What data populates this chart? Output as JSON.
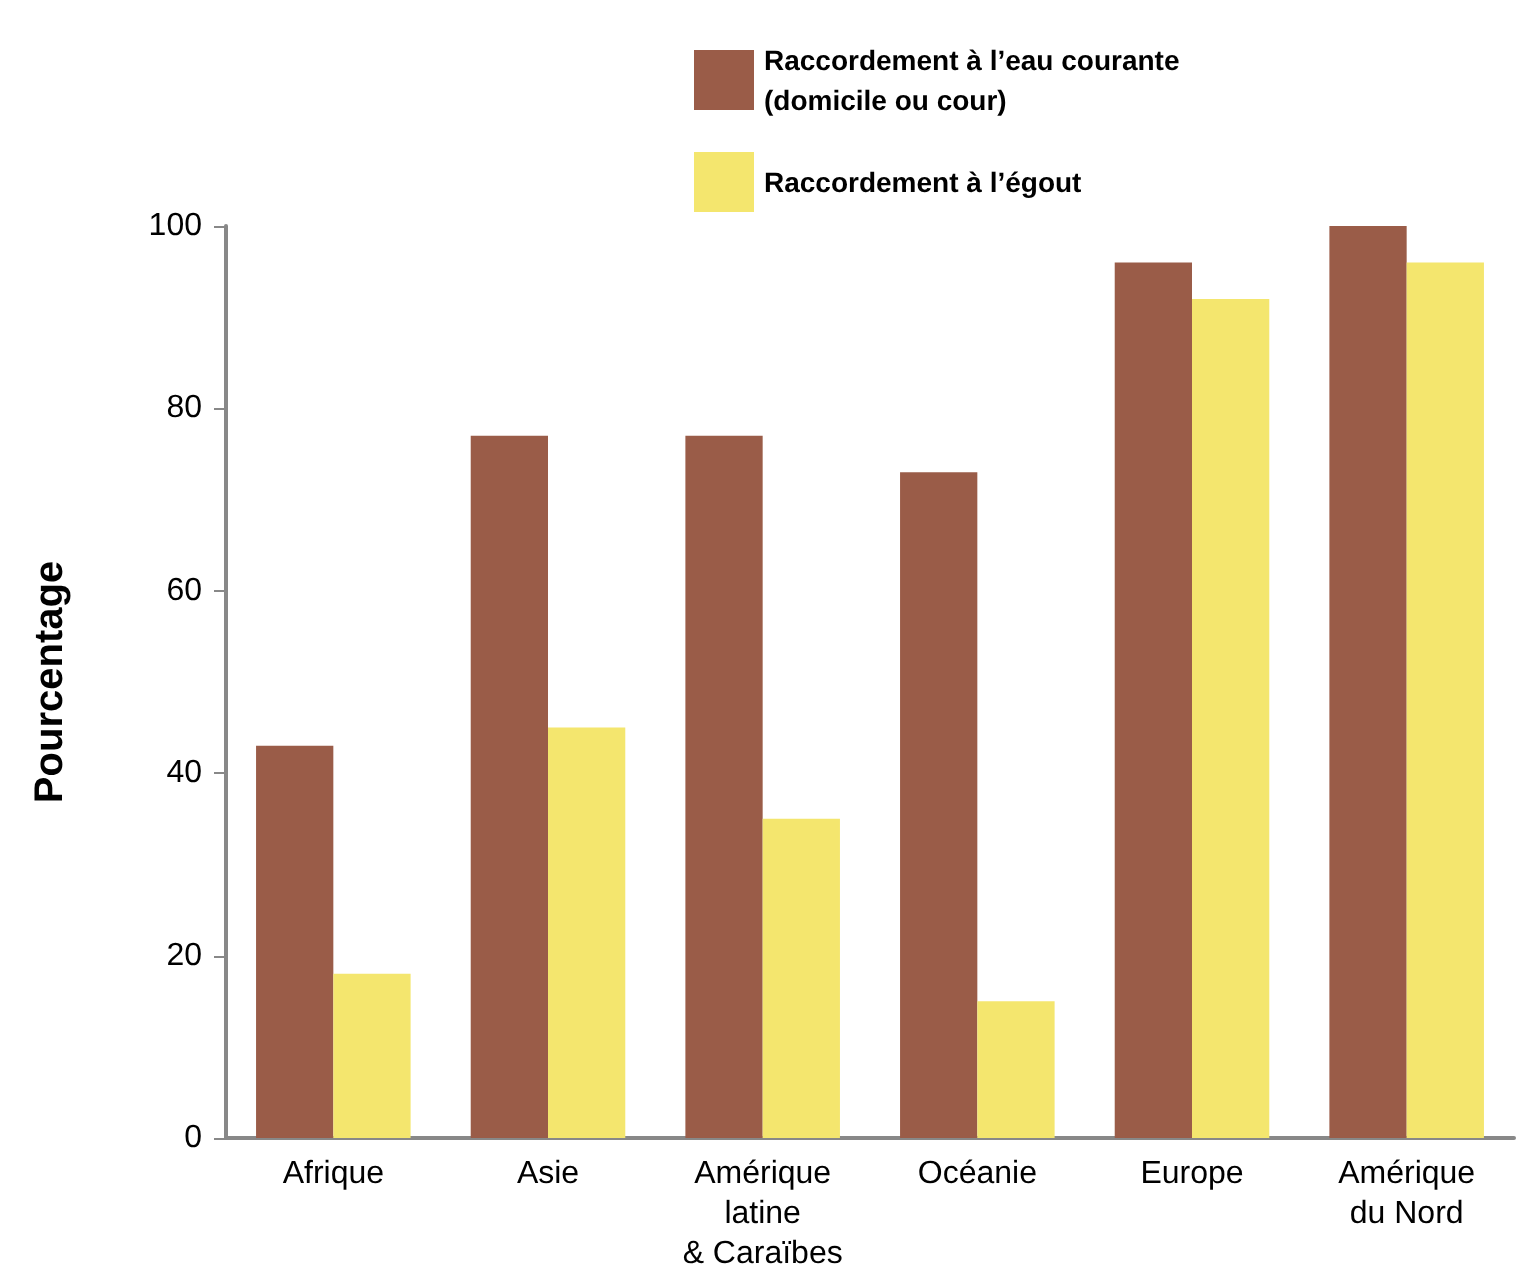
{
  "chart_data": {
    "type": "bar",
    "ylabel": "Pourcentage",
    "categories": [
      "Afrique",
      "Asie",
      "Amérique\nlatine\n& Caraïbes",
      "Océanie",
      "Europe",
      "Amérique\ndu Nord"
    ],
    "series": [
      {
        "name": "Raccordement à l’eau courante\n(domicile ou cour)",
        "color": "#9a5c48",
        "values": [
          43,
          77,
          77,
          73,
          96,
          100
        ]
      },
      {
        "name": "Raccordement à l’égout",
        "color": "#f4e66e",
        "values": [
          18,
          45,
          35,
          15,
          92,
          96
        ]
      }
    ],
    "ylim": [
      0,
      100
    ],
    "yticks": [
      0,
      20,
      40,
      60,
      80,
      100
    ],
    "grid": false,
    "legend": "top right"
  }
}
